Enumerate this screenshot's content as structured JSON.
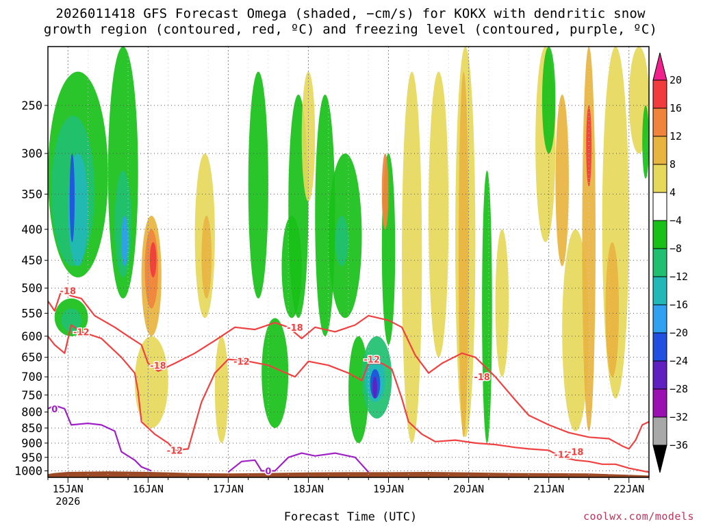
{
  "title_lines": [
    "2026011418 GFS Forecast Omega (shaded, −cm/s) for KOKX with dendritic snow",
    "growth region (contoured, red, ºC) and freezing level (contoured, purple, ºC)"
  ],
  "credit": "coolwx.com/models",
  "colors": {
    "dgz": "#f04040",
    "freezing": "#a020c8",
    "terrain": "#9c4a25",
    "grid": "#555555"
  },
  "chart_data": {
    "type": "heatmap",
    "xlabel": "Forecast Time (UTC)",
    "ylabel": "",
    "x_ticks": [
      {
        "label": "15JAN",
        "sublabel": "2026",
        "hour": 0
      },
      {
        "label": "16JAN",
        "hour": 24
      },
      {
        "label": "17JAN",
        "hour": 48
      },
      {
        "label": "18JAN",
        "hour": 72
      },
      {
        "label": "19JAN",
        "hour": 96
      },
      {
        "label": "20JAN",
        "hour": 120
      },
      {
        "label": "21JAN",
        "hour": 144
      },
      {
        "label": "22JAN",
        "hour": 168
      }
    ],
    "xlim_hours": [
      -6,
      174
    ],
    "y_ticks": [
      250,
      300,
      350,
      400,
      450,
      500,
      550,
      600,
      650,
      700,
      750,
      800,
      850,
      900,
      950,
      1000
    ],
    "ylim_hpa": [
      1025,
      200
    ],
    "y_scale": "log",
    "grid": true,
    "colorbar": {
      "labels": [
        "20",
        "16",
        "12",
        "8",
        "4",
        "−4",
        "−8",
        "−12",
        "−16",
        "−20",
        "−24",
        "−28",
        "−32",
        "−36"
      ],
      "colors_top_down": [
        "#f03c3c",
        "#f0843c",
        "#e8b440",
        "#e6d85a",
        "#ffffff",
        "#18c018",
        "#20c070",
        "#22b8b8",
        "#30a0f0",
        "#2050e0",
        "#6020c0",
        "#9a10b0",
        "#a8a8a8"
      ],
      "top_arrow": "#f0208c",
      "bottom_arrow": "#000000"
    },
    "shading_patches": [
      {
        "h": [
          -6,
          12
        ],
        "p": [
          220,
          480
        ],
        "level": -8
      },
      {
        "h": [
          -5,
          8
        ],
        "p": [
          260,
          460
        ],
        "level": -12
      },
      {
        "h": [
          0,
          6
        ],
        "p": [
          300,
          460
        ],
        "level": -16
      },
      {
        "h": [
          0.5,
          2
        ],
        "p": [
          300,
          420
        ],
        "level": -24
      },
      {
        "h": [
          12,
          21
        ],
        "p": [
          200,
          520
        ],
        "level": -8
      },
      {
        "h": [
          14,
          19
        ],
        "p": [
          320,
          480
        ],
        "level": -12
      },
      {
        "h": [
          16,
          18
        ],
        "p": [
          380,
          460
        ],
        "level": -20
      },
      {
        "h": [
          -4,
          6
        ],
        "p": [
          520,
          600
        ],
        "level": -8
      },
      {
        "h": [
          -2,
          4
        ],
        "p": [
          540,
          590
        ],
        "level": -12
      },
      {
        "h": [
          22,
          28
        ],
        "p": [
          380,
          600
        ],
        "level": 8
      },
      {
        "h": [
          23,
          27
        ],
        "p": [
          400,
          540
        ],
        "level": 12
      },
      {
        "h": [
          24.5,
          26.5
        ],
        "p": [
          420,
          480
        ],
        "level": 16
      },
      {
        "h": [
          20,
          30
        ],
        "p": [
          600,
          850
        ],
        "level": 4
      },
      {
        "h": [
          38,
          44
        ],
        "p": [
          300,
          560
        ],
        "level": 4
      },
      {
        "h": [
          40,
          43
        ],
        "p": [
          380,
          520
        ],
        "level": 8
      },
      {
        "h": [
          44,
          48
        ],
        "p": [
          600,
          900
        ],
        "level": 4
      },
      {
        "h": [
          54,
          60
        ],
        "p": [
          220,
          520
        ],
        "level": -8
      },
      {
        "h": [
          58,
          66
        ],
        "p": [
          560,
          850
        ],
        "level": -8
      },
      {
        "h": [
          64,
          70
        ],
        "p": [
          380,
          560
        ],
        "level": -8
      },
      {
        "h": [
          66,
          72
        ],
        "p": [
          240,
          560
        ],
        "level": -4
      },
      {
        "h": [
          70,
          74
        ],
        "p": [
          220,
          360
        ],
        "level": 4
      },
      {
        "h": [
          74,
          80
        ],
        "p": [
          240,
          600
        ],
        "level": -8
      },
      {
        "h": [
          78,
          88
        ],
        "p": [
          300,
          560
        ],
        "level": -8
      },
      {
        "h": [
          80,
          84
        ],
        "p": [
          380,
          460
        ],
        "level": -12
      },
      {
        "h": [
          84,
          90
        ],
        "p": [
          600,
          900
        ],
        "level": -8
      },
      {
        "h": [
          88,
          97
        ],
        "p": [
          600,
          820
        ],
        "level": -12
      },
      {
        "h": [
          89,
          95
        ],
        "p": [
          650,
          770
        ],
        "level": -16
      },
      {
        "h": [
          90.5,
          93.5
        ],
        "p": [
          680,
          760
        ],
        "level": -24
      },
      {
        "h": [
          91.2,
          92.6
        ],
        "p": [
          700,
          760
        ],
        "level": -28
      },
      {
        "h": [
          94,
          98
        ],
        "p": [
          300,
          620
        ],
        "level": -8
      },
      {
        "h": [
          94,
          96
        ],
        "p": [
          300,
          400
        ],
        "level": 12
      },
      {
        "h": [
          100,
          106
        ],
        "p": [
          220,
          900
        ],
        "level": 4
      },
      {
        "h": [
          108,
          114
        ],
        "p": [
          220,
          650
        ],
        "level": 4
      },
      {
        "h": [
          116,
          122
        ],
        "p": [
          200,
          880
        ],
        "level": 4
      },
      {
        "h": [
          117,
          120
        ],
        "p": [
          220,
          880
        ],
        "level": 8
      },
      {
        "h": [
          124,
          127
        ],
        "p": [
          320,
          900
        ],
        "level": -8
      },
      {
        "h": [
          128,
          132
        ],
        "p": [
          400,
          700
        ],
        "level": 4
      },
      {
        "h": [
          140,
          146
        ],
        "p": [
          200,
          420
        ],
        "level": 4
      },
      {
        "h": [
          142,
          146
        ],
        "p": [
          200,
          300
        ],
        "level": -8
      },
      {
        "h": [
          146,
          150
        ],
        "p": [
          240,
          460
        ],
        "level": 8
      },
      {
        "h": [
          148,
          156
        ],
        "p": [
          400,
          860
        ],
        "level": 4
      },
      {
        "h": [
          154,
          158
        ],
        "p": [
          200,
          860
        ],
        "level": 8
      },
      {
        "h": [
          155.2,
          156.8
        ],
        "p": [
          250,
          340
        ],
        "level": 16
      },
      {
        "h": [
          160,
          168
        ],
        "p": [
          200,
          760
        ],
        "level": 4
      },
      {
        "h": [
          161,
          165
        ],
        "p": [
          420,
          700
        ],
        "level": 8
      },
      {
        "h": [
          168,
          174
        ],
        "p": [
          200,
          300
        ],
        "level": 4
      },
      {
        "h": [
          172,
          174
        ],
        "p": [
          250,
          330
        ],
        "level": -8
      }
    ],
    "series": [
      {
        "name": "-18",
        "type": "contour",
        "color": "#f04040",
        "points": [
          [
            -6,
            525
          ],
          [
            -4,
            545
          ],
          [
            -2,
            505
          ],
          [
            1,
            515
          ],
          [
            4,
            520
          ],
          [
            8,
            555
          ],
          [
            14,
            580
          ],
          [
            18,
            600
          ],
          [
            22,
            620
          ],
          [
            24,
            665
          ],
          [
            27,
            685
          ],
          [
            32,
            665
          ],
          [
            38,
            640
          ],
          [
            44,
            610
          ],
          [
            50,
            580
          ],
          [
            56,
            585
          ],
          [
            62,
            570
          ],
          [
            66,
            580
          ],
          [
            70,
            605
          ],
          [
            74,
            580
          ],
          [
            80,
            590
          ],
          [
            86,
            575
          ],
          [
            90,
            555
          ],
          [
            96,
            565
          ],
          [
            100,
            580
          ],
          [
            104,
            645
          ],
          [
            108,
            690
          ],
          [
            112,
            665
          ],
          [
            118,
            640
          ],
          [
            122,
            650
          ],
          [
            128,
            700
          ],
          [
            134,
            765
          ],
          [
            138,
            810
          ],
          [
            144,
            840
          ],
          [
            150,
            865
          ],
          [
            156,
            880
          ],
          [
            162,
            885
          ],
          [
            166,
            910
          ],
          [
            168,
            920
          ],
          [
            170,
            890
          ],
          [
            172,
            840
          ],
          [
            174,
            830
          ]
        ]
      },
      {
        "name": "-12",
        "type": "contour",
        "color": "#f04040",
        "points": [
          [
            -6,
            600
          ],
          [
            -4,
            620
          ],
          [
            -1,
            640
          ],
          [
            1,
            575
          ],
          [
            4,
            590
          ],
          [
            10,
            605
          ],
          [
            16,
            650
          ],
          [
            20,
            690
          ],
          [
            21,
            740
          ],
          [
            22,
            830
          ],
          [
            26,
            870
          ],
          [
            30,
            900
          ],
          [
            32,
            925
          ],
          [
            36,
            920
          ],
          [
            40,
            770
          ],
          [
            44,
            690
          ],
          [
            48,
            655
          ],
          [
            54,
            660
          ],
          [
            60,
            670
          ],
          [
            64,
            685
          ],
          [
            68,
            700
          ],
          [
            72,
            660
          ],
          [
            78,
            670
          ],
          [
            84,
            690
          ],
          [
            88,
            710
          ],
          [
            90,
            665
          ],
          [
            94,
            665
          ],
          [
            97,
            680
          ],
          [
            100,
            760
          ],
          [
            102,
            830
          ],
          [
            106,
            870
          ],
          [
            110,
            895
          ],
          [
            116,
            890
          ],
          [
            122,
            900
          ],
          [
            128,
            905
          ],
          [
            134,
            915
          ],
          [
            138,
            920
          ],
          [
            144,
            925
          ],
          [
            148,
            950
          ],
          [
            152,
            960
          ],
          [
            156,
            965
          ],
          [
            160,
            975
          ],
          [
            164,
            975
          ],
          [
            168,
            990
          ],
          [
            172,
            1000
          ],
          [
            174,
            1005
          ]
        ]
      },
      {
        "name": "0",
        "type": "contour",
        "color": "#a020c8",
        "points": [
          [
            -6,
            790
          ],
          [
            -4,
            780
          ],
          [
            -1,
            790
          ],
          [
            1,
            840
          ],
          [
            6,
            835
          ],
          [
            10,
            840
          ],
          [
            14,
            860
          ],
          [
            16,
            930
          ],
          [
            20,
            960
          ],
          [
            22,
            985
          ],
          [
            25,
            1000
          ]
        ]
      },
      {
        "name": "0",
        "type": "contour",
        "color": "#a020c8",
        "points": [
          [
            48,
            1005
          ],
          [
            52,
            965
          ],
          [
            56,
            960
          ],
          [
            58,
            1000
          ],
          [
            62,
            1000
          ],
          [
            66,
            950
          ],
          [
            70,
            935
          ],
          [
            74,
            945
          ],
          [
            80,
            935
          ],
          [
            86,
            950
          ],
          [
            90,
            1005
          ]
        ]
      }
    ],
    "contour_labels": [
      {
        "text": "-18",
        "h": 0,
        "p": 505,
        "color": "#f04040"
      },
      {
        "text": "-12",
        "h": 4,
        "p": 590,
        "color": "#f04040"
      },
      {
        "text": "-18",
        "h": 27,
        "p": 670,
        "color": "#f04040"
      },
      {
        "text": "-12",
        "h": 32,
        "p": 925,
        "color": "#f04040"
      },
      {
        "text": "-12",
        "h": 52,
        "p": 660,
        "color": "#f04040"
      },
      {
        "text": "-18",
        "h": 68,
        "p": 580,
        "color": "#f04040"
      },
      {
        "text": "-12",
        "h": 91,
        "p": 655,
        "color": "#f04040"
      },
      {
        "text": "-18",
        "h": 124,
        "p": 700,
        "color": "#f04040"
      },
      {
        "text": "-12",
        "h": 148,
        "p": 940,
        "color": "#f04040"
      },
      {
        "text": "-18",
        "h": 152,
        "p": 930,
        "color": "#f04040"
      },
      {
        "text": "0",
        "h": -4,
        "p": 790,
        "color": "#a020c8"
      },
      {
        "text": "0",
        "h": 60,
        "p": 1000,
        "color": "#a020c8"
      }
    ],
    "terrain_p": [
      [
        -6,
        1012
      ],
      [
        -4,
        1008
      ],
      [
        0,
        1004
      ],
      [
        6,
        1003
      ],
      [
        12,
        1002
      ],
      [
        24,
        1004
      ],
      [
        36,
        1008
      ],
      [
        48,
        1010
      ],
      [
        60,
        1008
      ],
      [
        72,
        1006
      ],
      [
        84,
        1005
      ],
      [
        96,
        1005
      ],
      [
        108,
        1004
      ],
      [
        120,
        1006
      ],
      [
        132,
        1008
      ],
      [
        144,
        1009
      ],
      [
        156,
        1010
      ],
      [
        168,
        1015
      ],
      [
        174,
        1018
      ]
    ]
  }
}
